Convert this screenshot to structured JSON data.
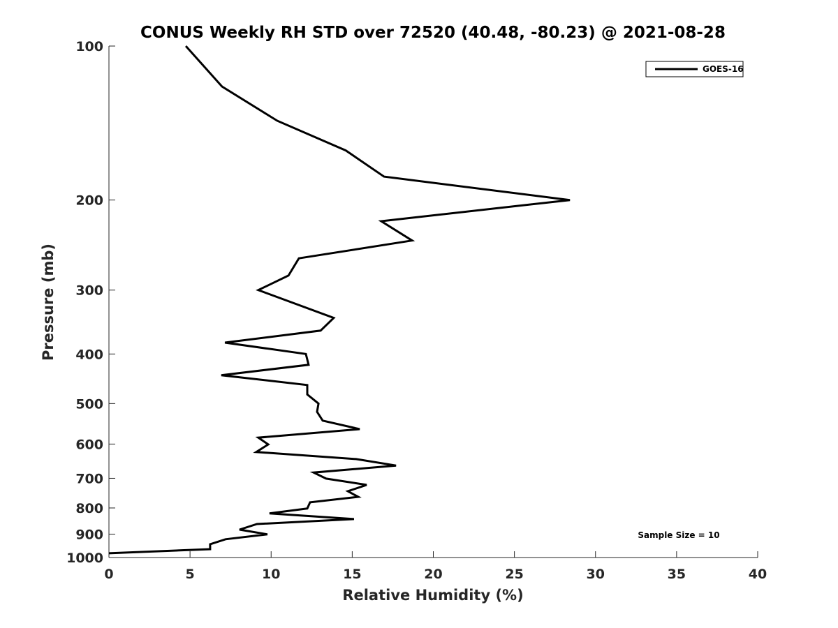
{
  "chart_data": {
    "type": "line",
    "title": "CONUS Weekly RH STD over 72520 (40.48, -80.23) @ 2021-08-28",
    "xlabel": "Relative Humidity (%)",
    "ylabel": "Pressure (mb)",
    "xlim": [
      0,
      40
    ],
    "ylim": [
      100,
      1000
    ],
    "yscale": "log",
    "y_reversed": true,
    "grid": false,
    "xticks": [
      "0",
      "5",
      "10",
      "15",
      "20",
      "25",
      "30",
      "35",
      "40"
    ],
    "yticks": [
      "100",
      "200",
      "300",
      "400",
      "500",
      "600",
      "700",
      "800",
      "900",
      "1000"
    ],
    "legend": {
      "placement": "top-right",
      "entries": [
        "GOES-16"
      ]
    },
    "annotation": "Sample Size = 10",
    "series": [
      {
        "name": "GOES-16",
        "color": "#000000",
        "x": [
          4.74,
          6.97,
          10.38,
          14.6,
          16.96,
          28.42,
          16.79,
          18.69,
          11.71,
          11.07,
          9.21,
          13.86,
          13.05,
          7.15,
          12.14,
          12.31,
          6.93,
          12.23,
          12.23,
          12.92,
          12.83,
          13.18,
          15.46,
          9.21,
          9.82,
          9.08,
          15.24,
          17.7,
          12.62,
          13.39,
          15.89,
          14.73,
          15.37,
          12.4,
          12.23,
          9.9,
          15.11,
          9.13,
          8.05,
          9.77,
          7.19,
          6.24,
          6.24,
          0
        ],
        "y": [
          100,
          120,
          140,
          160,
          180,
          200,
          220,
          240,
          260,
          281,
          300,
          340,
          360,
          380,
          400,
          420,
          440,
          460,
          480,
          500,
          519,
          540,
          561,
          583,
          601,
          622,
          642,
          661,
          682,
          701,
          721,
          742,
          761,
          780,
          802,
          820,
          841,
          860,
          882,
          901,
          921,
          942,
          963,
          981
        ]
      }
    ]
  }
}
